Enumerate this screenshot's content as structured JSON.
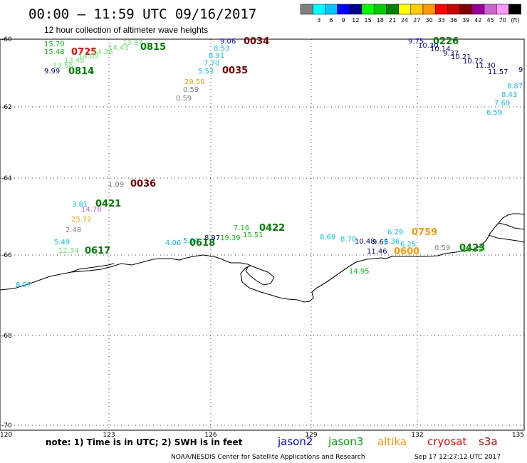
{
  "header": {
    "title": "00:00 – 11:59 UTC 09/16/2017",
    "subtitle": "12 hour collection of altimeter wave heights"
  },
  "scale": {
    "colors": [
      "#808080",
      "#00ffff",
      "#00c8ff",
      "#0000ff",
      "#00008b",
      "#00ff00",
      "#00cc00",
      "#008000",
      "#ffff00",
      "#ffcc00",
      "#ff9900",
      "#ff0000",
      "#cc0000",
      "#800000",
      "#990099",
      "#cc66cc",
      "#ff99ff",
      "#000000"
    ],
    "labels": [
      "3",
      "6",
      "9",
      "12",
      "15",
      "18",
      "21",
      "24",
      "27",
      "30",
      "33",
      "36",
      "39",
      "42",
      "45",
      "70"
    ],
    "unit": "(ft)"
  },
  "axes": {
    "lat_labels": [
      "-60",
      "-62",
      "-64",
      "-66",
      "-68",
      "-70"
    ],
    "lon_labels": [
      "120",
      "123",
      "126",
      "129",
      "132",
      "135"
    ]
  },
  "observations": [
    {
      "text": "15.70",
      "color": "#00cc00",
      "kind": "val"
    },
    {
      "text": "15.48",
      "color": "#00cc00",
      "kind": "val"
    },
    {
      "text": "0725",
      "color": "#ff0000",
      "kind": "time"
    },
    {
      "text": "9.99",
      "color": "#00008b",
      "kind": "val"
    },
    {
      "text": "0814",
      "color": "#008000",
      "kind": "time"
    },
    {
      "text": "13.58",
      "color": "#66ee66",
      "kind": "val"
    },
    {
      "text": "13.48",
      "color": "#66ee66",
      "kind": "val"
    },
    {
      "text": "14.09",
      "color": "#66ee66",
      "kind": "val"
    },
    {
      "text": "14.38",
      "color": "#66ee66",
      "kind": "val"
    },
    {
      "text": "14.43",
      "color": "#66ee66",
      "kind": "val"
    },
    {
      "text": "13.97",
      "color": "#66ee66",
      "kind": "val"
    },
    {
      "text": "0815",
      "color": "#008000",
      "kind": "time"
    },
    {
      "text": "9.06",
      "color": "#0000ff",
      "kind": "val"
    },
    {
      "text": "0034",
      "color": "#800000",
      "kind": "time"
    },
    {
      "text": "8.53",
      "color": "#00c8ff",
      "kind": "val"
    },
    {
      "text": "8.91",
      "color": "#00c8ff",
      "kind": "val"
    },
    {
      "text": "7.70",
      "color": "#00c8ff",
      "kind": "val"
    },
    {
      "text": "5.53",
      "color": "#00c8ff",
      "kind": "val"
    },
    {
      "text": "0035",
      "color": "#800000",
      "kind": "time"
    },
    {
      "text": "29.50",
      "color": "#ff9900",
      "kind": "val"
    },
    {
      "text": "0.59",
      "color": "#808080",
      "kind": "val"
    },
    {
      "text": "0.59",
      "color": "#808080",
      "kind": "val"
    },
    {
      "text": "9.75",
      "color": "#0000ff",
      "kind": "val"
    },
    {
      "text": "0226",
      "color": "#008000",
      "kind": "time"
    },
    {
      "text": "10.30",
      "color": "#0000ff",
      "kind": "val"
    },
    {
      "text": "10.14",
      "color": "#00008b",
      "kind": "val"
    },
    {
      "text": "9.37",
      "color": "#00008b",
      "kind": "val"
    },
    {
      "text": "10.21",
      "color": "#00008b",
      "kind": "val"
    },
    {
      "text": "10.72",
      "color": "#00008b",
      "kind": "val"
    },
    {
      "text": "11.30",
      "color": "#00008b",
      "kind": "val"
    },
    {
      "text": "11.57",
      "color": "#00008b",
      "kind": "val"
    },
    {
      "text": "9.",
      "color": "#00008b",
      "kind": "val"
    },
    {
      "text": "8.87",
      "color": "#00c8ff",
      "kind": "val"
    },
    {
      "text": "8.43",
      "color": "#00c8ff",
      "kind": "val"
    },
    {
      "text": "7.69",
      "color": "#00c8ff",
      "kind": "val"
    },
    {
      "text": "6.59",
      "color": "#00c8ff",
      "kind": "val"
    },
    {
      "text": "1.09",
      "color": "#808080",
      "kind": "val"
    },
    {
      "text": "0036",
      "color": "#800000",
      "kind": "time"
    },
    {
      "text": "3.81",
      "color": "#00c8ff",
      "kind": "val"
    },
    {
      "text": "14.78",
      "color": "#cc66cc",
      "kind": "val"
    },
    {
      "text": "0421",
      "color": "#008000",
      "kind": "time"
    },
    {
      "text": "25.72",
      "color": "#ff9900",
      "kind": "val"
    },
    {
      "text": "2.48",
      "color": "#808080",
      "kind": "val"
    },
    {
      "text": "5.49",
      "color": "#00c8ff",
      "kind": "val"
    },
    {
      "text": "12.34",
      "color": "#66ee66",
      "kind": "val"
    },
    {
      "text": "0617",
      "color": "#008000",
      "kind": "time"
    },
    {
      "text": "4.06",
      "color": "#00c8ff",
      "kind": "val"
    },
    {
      "text": "5.04",
      "color": "#00c8ff",
      "kind": "val"
    },
    {
      "text": "0618",
      "color": "#008000",
      "kind": "time"
    },
    {
      "text": "8.97",
      "color": "#00008b",
      "kind": "val"
    },
    {
      "text": "19.39",
      "color": "#00cc00",
      "kind": "val"
    },
    {
      "text": "7.16",
      "color": "#00cc00",
      "kind": "val"
    },
    {
      "text": "0422",
      "color": "#008000",
      "kind": "time"
    },
    {
      "text": "15.51",
      "color": "#00cc00",
      "kind": "val"
    },
    {
      "text": "8.69",
      "color": "#00c8ff",
      "kind": "val"
    },
    {
      "text": "8.70",
      "color": "#00c8ff",
      "kind": "val"
    },
    {
      "text": "10.48",
      "color": "#00008b",
      "kind": "val"
    },
    {
      "text": "9.65",
      "color": "#00008b",
      "kind": "val"
    },
    {
      "text": "6.36",
      "color": "#00c8ff",
      "kind": "val"
    },
    {
      "text": "6.29",
      "color": "#00c8ff",
      "kind": "val"
    },
    {
      "text": "0759",
      "color": "#ff9900",
      "kind": "time"
    },
    {
      "text": "11.46",
      "color": "#00008b",
      "kind": "val"
    },
    {
      "text": "6.25",
      "color": "#00c8ff",
      "kind": "val"
    },
    {
      "text": "0600",
      "color": "#ff9900",
      "kind": "time"
    },
    {
      "text": "0.59",
      "color": "#808080",
      "kind": "val"
    },
    {
      "text": "0423",
      "color": "#008000",
      "kind": "time"
    },
    {
      "text": "16.23",
      "color": "#00cc00",
      "kind": "val"
    },
    {
      "text": "14.95",
      "color": "#00cc00",
      "kind": "val"
    },
    {
      "text": "8.97",
      "color": "#00c8ff",
      "kind": "val"
    }
  ],
  "footer": {
    "note": "note: 1) Time is in UTC; 2) SWH is in feet",
    "legend": [
      {
        "label": "jason2",
        "color": "#0000ff"
      },
      {
        "label": "jason3",
        "color": "#00aa00"
      },
      {
        "label": "altika",
        "color": "#ff9900"
      },
      {
        "label": "cryosat",
        "color": "#ff0000"
      },
      {
        "label": "s3a",
        "color": "#cc0000"
      }
    ],
    "credit": "NOAA/NESDIS Center for Satellite Applications and Research",
    "timestamp": "Sep 17 12:27:12 UTC 2017"
  }
}
